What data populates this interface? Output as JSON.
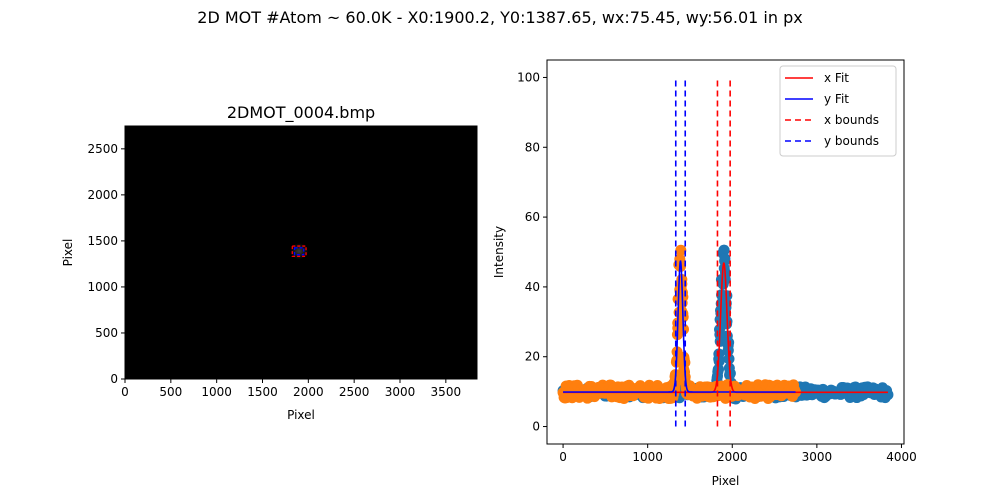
{
  "figure": {
    "suptitle": "2D MOT #Atom ~ 60.0K - X0:1900.2, Y0:1387.65, wx:75.45, wy:56.01 in px"
  },
  "colors": {
    "x_data": "#1f77b4",
    "y_data": "#ff7f0e",
    "x_fit": "#ff0000",
    "y_fit": "#0000ff",
    "image_background": "#000000"
  },
  "chart_data": [
    {
      "type": "heatmap",
      "title": "2DMOT_0004.bmp",
      "xlabel": "Pixel",
      "ylabel": "Pixel",
      "xlim": [
        0,
        3840
      ],
      "ylim": [
        0,
        2748
      ],
      "xticks": [
        0,
        500,
        1000,
        1500,
        2000,
        2500,
        3000,
        3500
      ],
      "yticks": [
        0,
        500,
        1000,
        1500,
        2000,
        2500
      ],
      "colormap": "gray",
      "cloud_center": [
        1900.2,
        1387.65
      ],
      "cloud_width": [
        75.45,
        56.01
      ],
      "overlays": [
        {
          "kind": "x-bounds-box",
          "x": [
            1825,
            1975
          ],
          "y": [
            1332,
            1444
          ],
          "color": "#ff0000",
          "style": "dashed"
        },
        {
          "kind": "y-bounds-box",
          "x": [
            1850,
            1950
          ],
          "y": [
            1350,
            1425
          ],
          "color": "#0000ff",
          "style": "dashed"
        }
      ]
    },
    {
      "type": "scatter",
      "xlabel": "Pixel",
      "ylabel": "Intensity",
      "xlim": [
        -190,
        4030
      ],
      "ylim": [
        -5,
        105
      ],
      "xticks": [
        0,
        1000,
        2000,
        3000,
        4000
      ],
      "yticks": [
        0,
        20,
        40,
        60,
        80,
        100
      ],
      "legend_position": "top-right",
      "series": [
        {
          "role": "x data",
          "x_range": [
            0,
            3840
          ],
          "baseline": 9.8,
          "noise": 1.6,
          "peak_center": 1900.2,
          "peak_sigma": 37.7,
          "peak_amp": 38,
          "peak_max": 50.5
        },
        {
          "role": "y data",
          "x_range": [
            0,
            2748
          ],
          "baseline": 10.0,
          "noise": 2.0,
          "peak_center": 1387.65,
          "peak_sigma": 28.0,
          "peak_amp": 38,
          "peak_max": 50.5
        },
        {
          "name": "x Fit",
          "style": "solid",
          "x_range": [
            0,
            3840
          ],
          "baseline": 9.8,
          "center": 1900.2,
          "sigma": 37.7,
          "amplitude": 37
        },
        {
          "name": "y Fit",
          "style": "solid",
          "x_range": [
            0,
            2748
          ],
          "baseline": 9.9,
          "center": 1387.65,
          "sigma": 28.0,
          "amplitude": 37.5
        },
        {
          "name": "x bounds",
          "style": "dashed",
          "x": [
            1825,
            1975
          ],
          "y": [
            0,
            100
          ]
        },
        {
          "name": "y bounds",
          "style": "dashed",
          "x": [
            1332,
            1444
          ],
          "y": [
            0,
            100
          ]
        }
      ]
    }
  ]
}
